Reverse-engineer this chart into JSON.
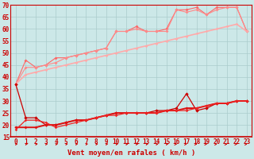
{
  "xlabel": "Vent moyen/en rafales ( km/h )",
  "background_color": "#cce8e8",
  "grid_color": "#aacccc",
  "x_values": [
    0,
    1,
    2,
    3,
    4,
    5,
    6,
    7,
    8,
    9,
    10,
    11,
    12,
    13,
    14,
    15,
    16,
    17,
    18,
    19,
    20,
    21,
    22,
    23
  ],
  "series": [
    {
      "name": "upper_jagged1",
      "color": "#ff6666",
      "linewidth": 0.8,
      "marker": "D",
      "markersize": 2.0,
      "y": [
        37,
        47,
        44,
        45,
        48,
        48,
        49,
        50,
        51,
        52,
        59,
        59,
        61,
        59,
        59,
        60,
        68,
        68,
        69,
        66,
        69,
        69,
        69,
        59
      ]
    },
    {
      "name": "upper_jagged2",
      "color": "#ff8888",
      "linewidth": 0.8,
      "marker": "D",
      "markersize": 2.0,
      "y": [
        37,
        44,
        44,
        45,
        46,
        48,
        49,
        50,
        51,
        52,
        59,
        59,
        60,
        59,
        59,
        59,
        68,
        67,
        68,
        66,
        68,
        69,
        69,
        59
      ]
    },
    {
      "name": "upper_trend",
      "color": "#ffaaaa",
      "linewidth": 1.2,
      "marker": "D",
      "markersize": 1.8,
      "y": [
        37,
        41,
        42,
        43,
        44,
        45,
        46,
        47,
        48,
        49,
        50,
        51,
        52,
        53,
        54,
        55,
        56,
        57,
        58,
        59,
        60,
        61,
        62,
        59
      ]
    },
    {
      "name": "lower_spike",
      "color": "#cc0000",
      "linewidth": 0.9,
      "marker": "D",
      "markersize": 2.2,
      "y": [
        37,
        23,
        23,
        20,
        20,
        21,
        22,
        22,
        23,
        24,
        25,
        25,
        25,
        25,
        26,
        26,
        27,
        33,
        26,
        27,
        29,
        29,
        30,
        30
      ]
    },
    {
      "name": "lower_base1",
      "color": "#dd1111",
      "linewidth": 1.4,
      "marker": "D",
      "markersize": 2.0,
      "y": [
        19,
        19,
        19,
        20,
        20,
        21,
        22,
        22,
        23,
        24,
        25,
        25,
        25,
        25,
        25,
        26,
        26,
        27,
        27,
        28,
        29,
        29,
        30,
        30
      ]
    },
    {
      "name": "lower_base2",
      "color": "#ee2222",
      "linewidth": 0.9,
      "marker": "D",
      "markersize": 1.8,
      "y": [
        18,
        22,
        22,
        21,
        19,
        20,
        21,
        22,
        23,
        24,
        24,
        25,
        25,
        25,
        25,
        26,
        26,
        26,
        27,
        28,
        29,
        29,
        30,
        30
      ]
    }
  ],
  "ylim": [
    15,
    70
  ],
  "yticks": [
    15,
    20,
    25,
    30,
    35,
    40,
    45,
    50,
    55,
    60,
    65,
    70
  ],
  "xlim": [
    -0.5,
    23.5
  ],
  "arrow_color": "#cc0000",
  "axis_fontsize": 6.5,
  "tick_fontsize": 5.5
}
